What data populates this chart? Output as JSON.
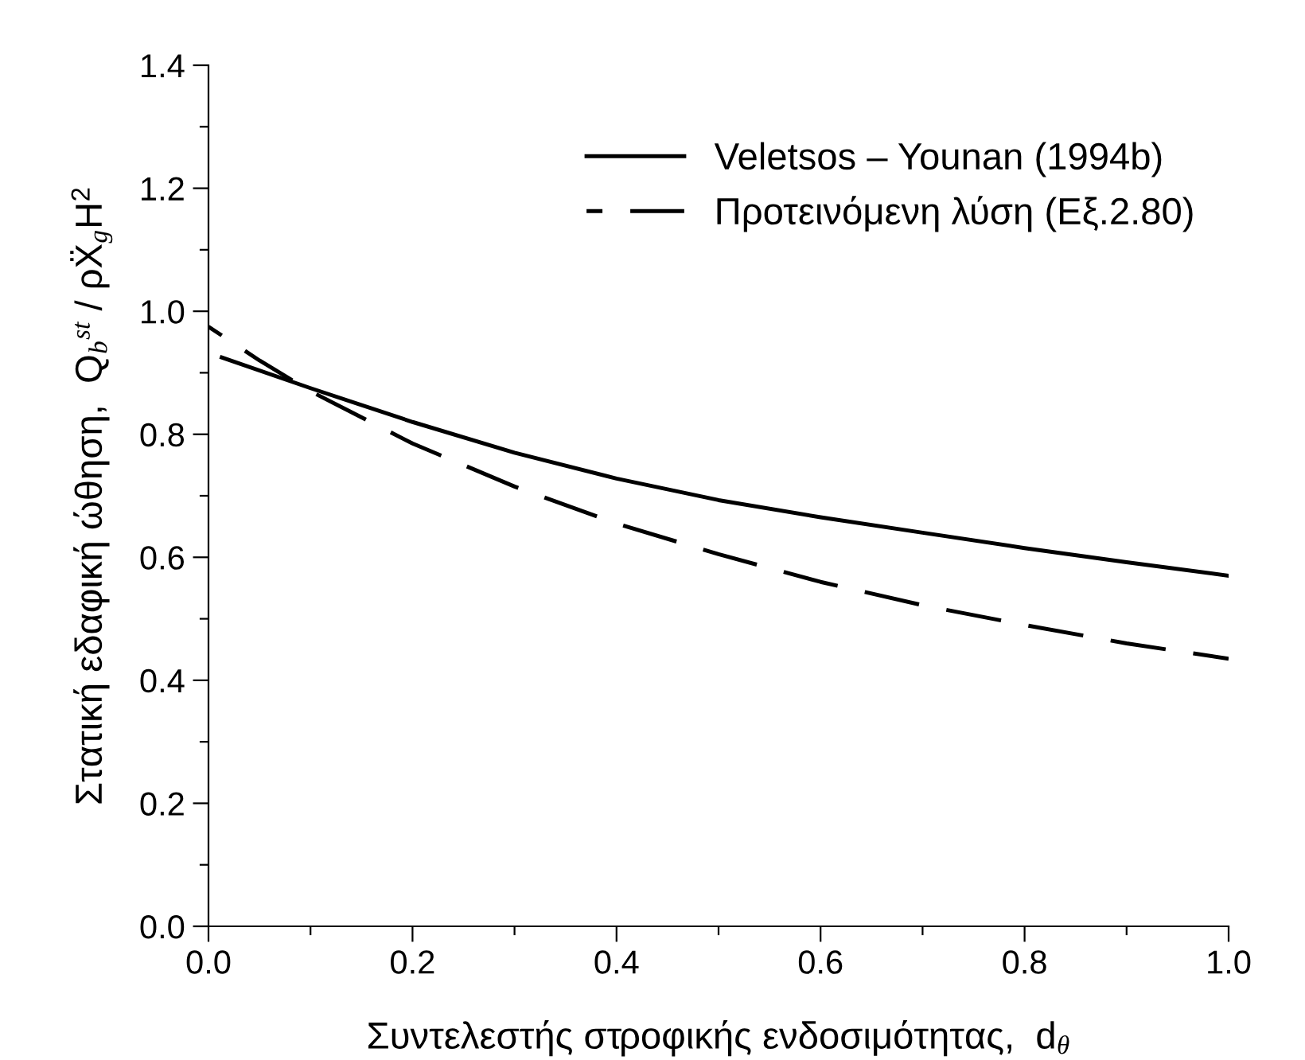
{
  "chart_data": {
    "type": "line",
    "xlabel": "Συντελεστής στροφικής ενδοσιμότητας,  d$_{θ}$",
    "ylabel": "Στατική εδαφική ώθηση,  Q$_{b}$$^{st}$ / ρẌ$_{g}$H$^{2}$",
    "series": [
      {
        "name": "Veletsos – Younan (1994b)",
        "color": "#000000",
        "line_style": "solid",
        "x": [
          0.013,
          0.1,
          0.2,
          0.3,
          0.4,
          0.5,
          0.6,
          0.7,
          0.8,
          0.9,
          1.0
        ],
        "values": [
          0.925,
          0.875,
          0.82,
          0.77,
          0.728,
          0.693,
          0.665,
          0.64,
          0.615,
          0.592,
          0.57
        ]
      },
      {
        "name": "Προτεινόμενη λύση (Εξ.2.80)",
        "color": "#000000",
        "line_style": "dashed",
        "x": [
          0.0,
          0.05,
          0.1,
          0.2,
          0.3,
          0.4,
          0.5,
          0.6,
          0.7,
          0.8,
          0.9,
          1.0
        ],
        "values": [
          0.975,
          0.92,
          0.87,
          0.785,
          0.715,
          0.655,
          0.605,
          0.56,
          0.522,
          0.49,
          0.46,
          0.435
        ]
      }
    ],
    "xlim": [
      0,
      1.0
    ],
    "ylim": [
      0,
      1.4
    ],
    "xticks": [
      {
        "value": 0,
        "label": "0.0"
      },
      {
        "value": 0.1,
        "label": null
      },
      0.2,
      {
        "value": 0.3,
        "label": null
      },
      0.4,
      {
        "value": 0.5,
        "label": null
      },
      0.6,
      {
        "value": 0.7,
        "label": null
      },
      0.8,
      {
        "value": 0.9,
        "label": null
      },
      {
        "value": 1.0,
        "label": "1.0"
      }
    ],
    "yticks": [
      {
        "value": 0,
        "label": "0.0"
      },
      {
        "value": 0.1,
        "label": null
      },
      0.2,
      {
        "value": 0.3,
        "label": null
      },
      0.4,
      {
        "value": 0.5,
        "label": null
      },
      0.6,
      {
        "value": 0.7,
        "label": null
      },
      0.8,
      {
        "value": 0.9,
        "label": null
      },
      {
        "value": 1.0,
        "label": "1.0"
      },
      {
        "value": 1.1,
        "label": null
      },
      1.2,
      {
        "value": 1.3,
        "label": null
      },
      1.4
    ],
    "legend": "top right",
    "grid": false
  }
}
